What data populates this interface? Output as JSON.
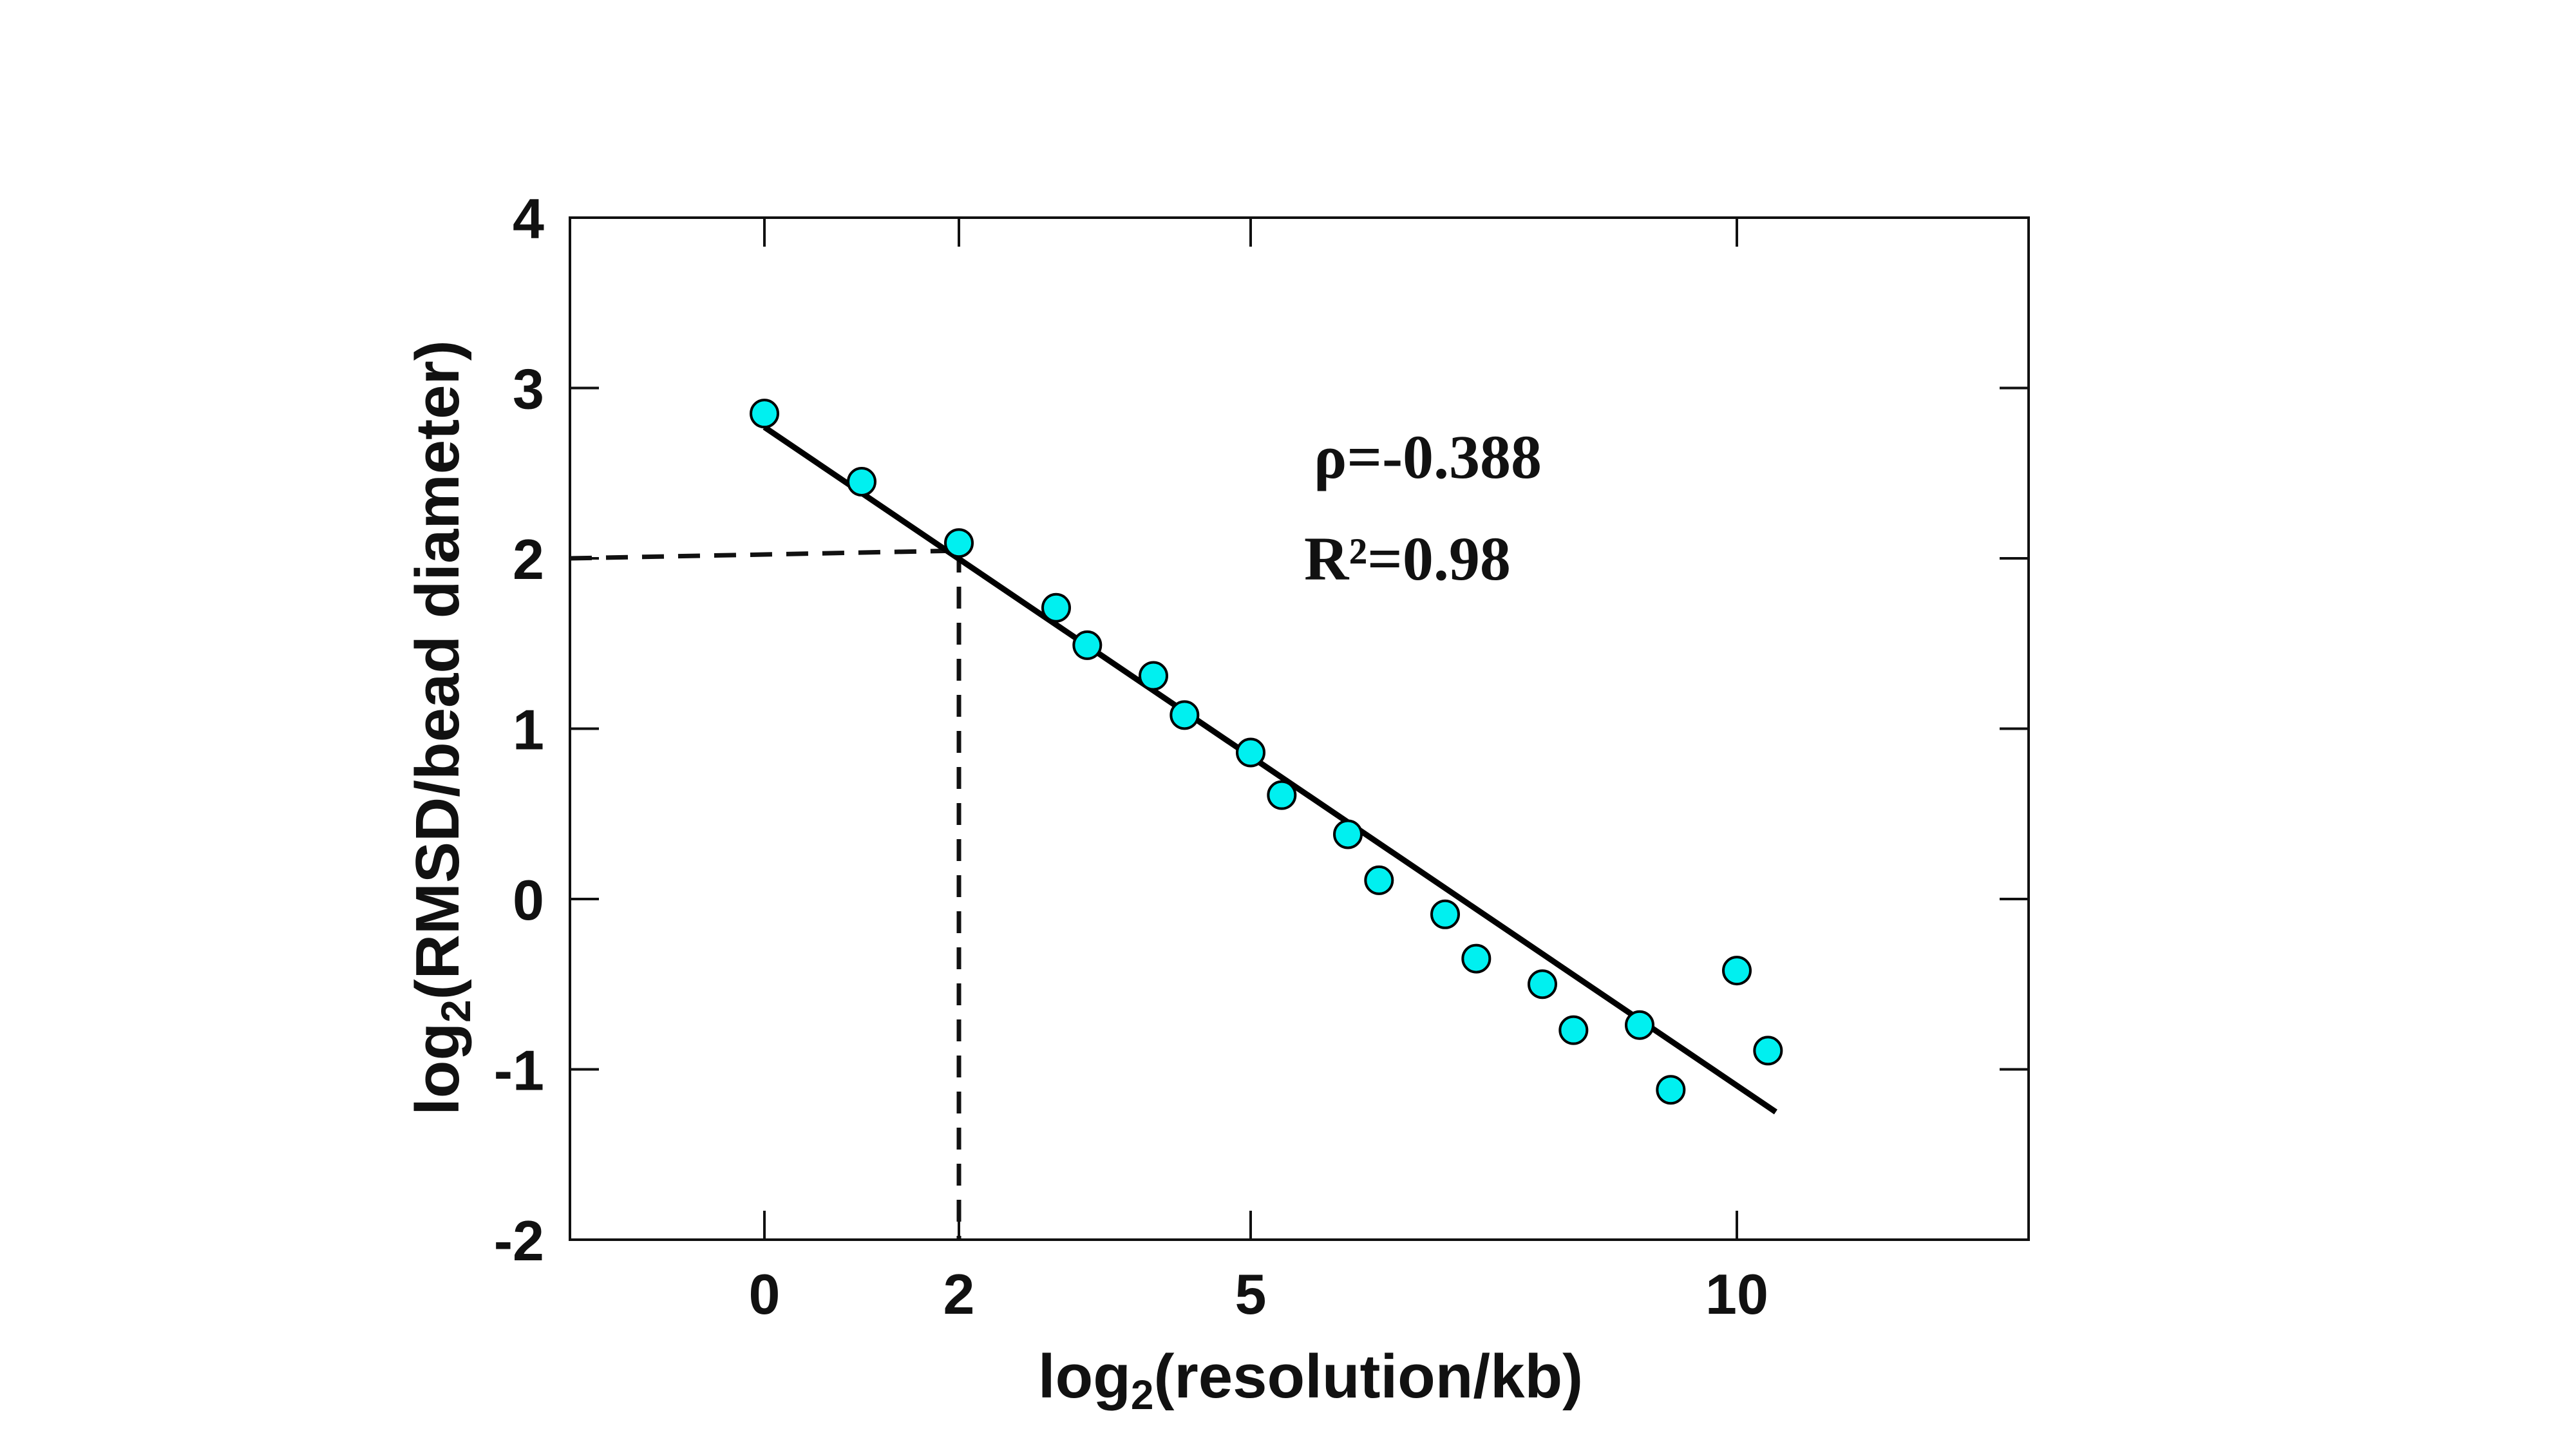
{
  "chart_data": {
    "type": "scatter",
    "x_label": "log2(resolution/kb)",
    "y_label": "log2(RMSD/bead diameter)",
    "xlim": [
      -2,
      13
    ],
    "ylim": [
      -2,
      4
    ],
    "x_ticks": [
      0,
      2,
      5,
      10
    ],
    "y_ticks": [
      -2,
      -1,
      0,
      1,
      2,
      3,
      4
    ],
    "grid": false,
    "points": [
      {
        "x": 0,
        "y": 2.85
      },
      {
        "x": 1,
        "y": 2.45
      },
      {
        "x": 2,
        "y": 2.09
      },
      {
        "x": 3,
        "y": 1.71
      },
      {
        "x": 3.32,
        "y": 1.49
      },
      {
        "x": 4,
        "y": 1.31
      },
      {
        "x": 4.32,
        "y": 1.08
      },
      {
        "x": 5,
        "y": 0.86
      },
      {
        "x": 5.32,
        "y": 0.61
      },
      {
        "x": 6,
        "y": 0.38
      },
      {
        "x": 6.32,
        "y": 0.11
      },
      {
        "x": 7,
        "y": -0.09
      },
      {
        "x": 7.32,
        "y": -0.35
      },
      {
        "x": 8,
        "y": -0.5
      },
      {
        "x": 8.32,
        "y": -0.77
      },
      {
        "x": 9,
        "y": -0.74
      },
      {
        "x": 9.32,
        "y": -1.12
      },
      {
        "x": 10,
        "y": -0.42
      },
      {
        "x": 10.32,
        "y": -0.89
      }
    ],
    "fit_line": {
      "x": [
        0,
        10.4
      ],
      "y": [
        2.77,
        -1.25
      ]
    },
    "reference": {
      "x": 2,
      "y": 2.0
    },
    "annotations": [
      "ρ=-0.388",
      "R²=0.98"
    ],
    "marker_color": "#00f0f0",
    "marker_edge_color": "#000000",
    "line_color": "#000000"
  }
}
